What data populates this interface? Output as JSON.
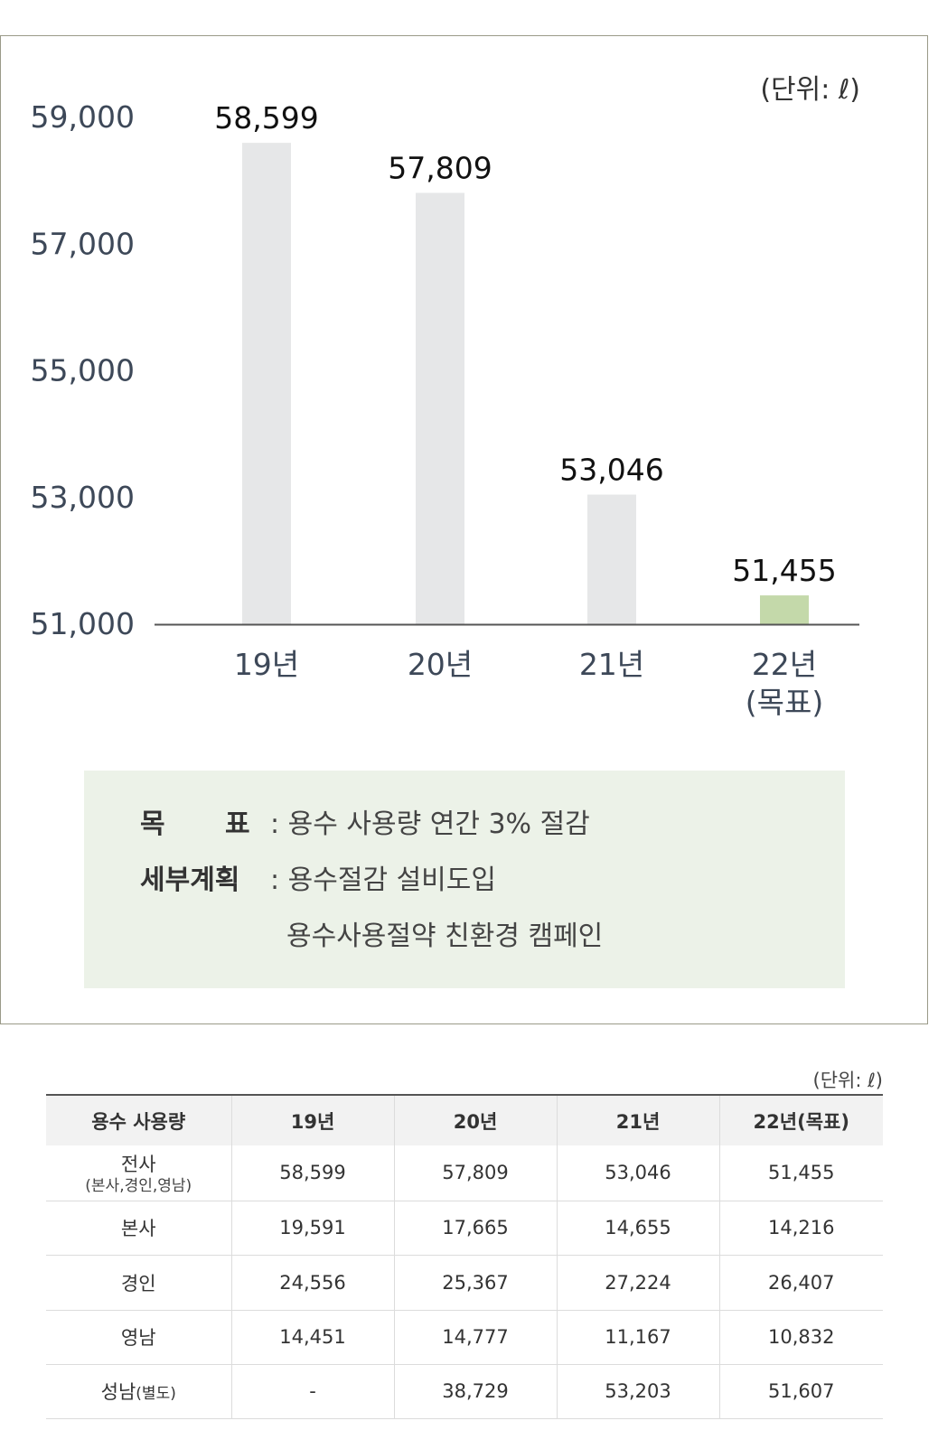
{
  "chart_data": {
    "type": "bar",
    "unit_label": "(단위: ℓ)",
    "categories": [
      "19년",
      "20년",
      "21년",
      "22년"
    ],
    "category_sublabels": [
      "",
      "",
      "",
      "(목표)"
    ],
    "values": [
      58599,
      57809,
      53046,
      51455
    ],
    "value_labels": [
      "58,599",
      "57,809",
      "53,046",
      "51,455"
    ],
    "yticks": [
      "59,000",
      "57,000",
      "55,000",
      "53,000",
      "51,000"
    ],
    "ytick_values": [
      59000,
      57000,
      55000,
      53000,
      51000
    ],
    "ylim": [
      51000,
      59000
    ],
    "colors": {
      "default_bar": "#e6e7e8",
      "target_bar": "#c4d9aa",
      "axis": "#555555",
      "tick_text": "#3d4858"
    }
  },
  "goal": {
    "label1": "목",
    "label1b": "표",
    "text1": ": 용수 사용량 연간 3% 절감",
    "label2": "세부계획",
    "text2": ": 용수절감 설비도입",
    "text3": "용수사용절약 친환경 캠페인"
  },
  "table": {
    "unit": "(단위: ℓ)",
    "headers": [
      "용수 사용량",
      "19년",
      "20년",
      "21년",
      "22년(목표)"
    ],
    "rows": [
      {
        "label": "전사",
        "sub": "(본사,경인,영남)",
        "cells": [
          "58,599",
          "57,809",
          "53,046",
          "51,455"
        ]
      },
      {
        "label": "본사",
        "sub": "",
        "cells": [
          "19,591",
          "17,665",
          "14,655",
          "14,216"
        ]
      },
      {
        "label": "경인",
        "sub": "",
        "cells": [
          "24,556",
          "25,367",
          "27,224",
          "26,407"
        ]
      },
      {
        "label": "영남",
        "sub": "",
        "cells": [
          "14,451",
          "14,777",
          "11,167",
          "10,832"
        ]
      },
      {
        "label": "성남",
        "sub": "(별도)",
        "cells": [
          "-",
          "38,729",
          "53,203",
          "51,607"
        ]
      }
    ]
  }
}
